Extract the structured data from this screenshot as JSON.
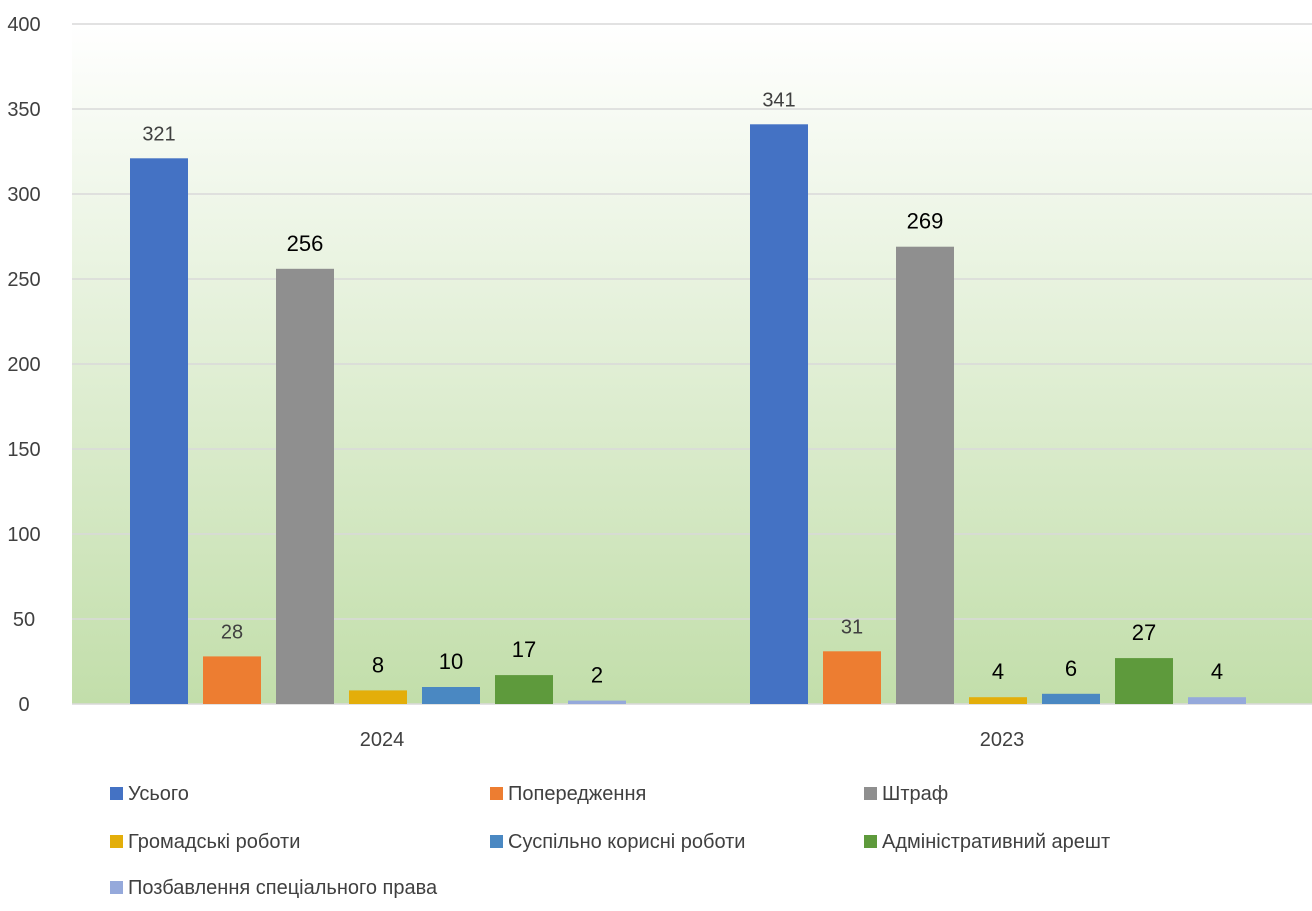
{
  "chart_data": {
    "type": "bar",
    "title": "",
    "xlabel": "",
    "ylabel": "",
    "ylim": [
      0,
      400
    ],
    "yticks": [
      0,
      50,
      100,
      150,
      200,
      250,
      300,
      350,
      400
    ],
    "grid": true,
    "legend_position": "bottom",
    "categories": [
      "2024",
      "2023"
    ],
    "series": [
      {
        "name": "Усього",
        "values": [
          321,
          341
        ],
        "color": "#4472C4"
      },
      {
        "name": "Попередження",
        "values": [
          28,
          31
        ],
        "color": "#ED7D31"
      },
      {
        "name": "Штраф",
        "values": [
          256,
          269
        ],
        "color": "#8F8F8F"
      },
      {
        "name": "Громадські роботи",
        "values": [
          8,
          4
        ],
        "color": "#E3AE0A"
      },
      {
        "name": "Суспільно корисні роботи",
        "values": [
          10,
          6
        ],
        "color": "#4A88C2"
      },
      {
        "name": "Адміністративний арешт",
        "values": [
          17,
          27
        ],
        "color": "#5E9A3C"
      },
      {
        "name": "Позбавлення спеціального права",
        "values": [
          2,
          4
        ],
        "color": "#95A9DB"
      }
    ],
    "background_gradient": [
      "#FFFFFF",
      "#C2DEAA"
    ]
  }
}
